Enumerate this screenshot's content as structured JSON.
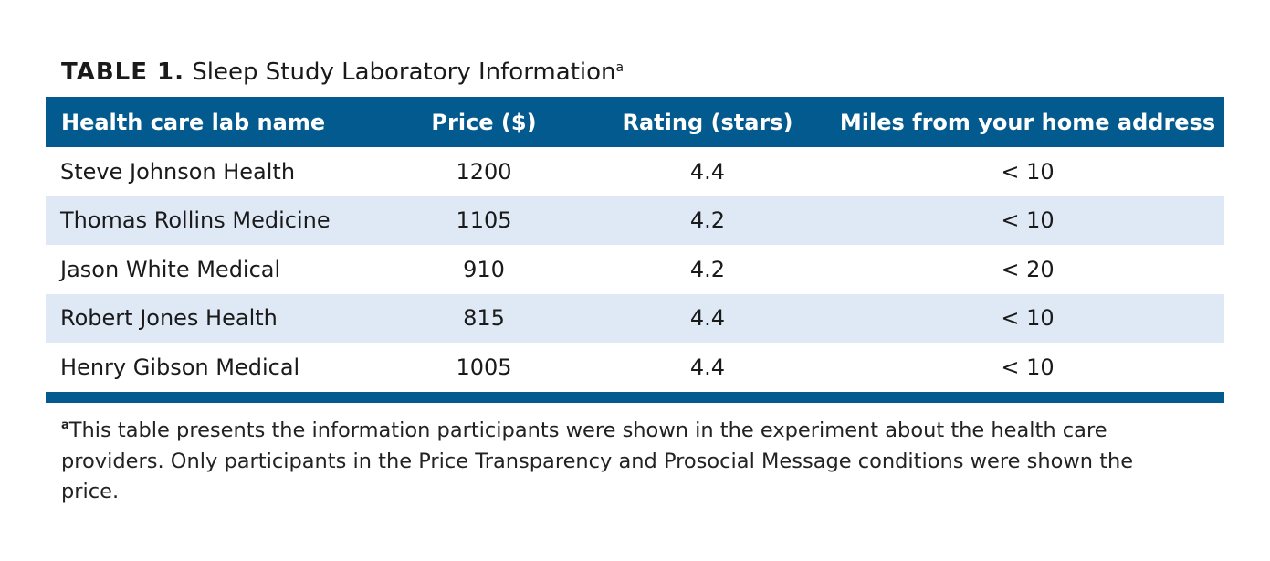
{
  "caption": {
    "label": "TABLE 1.",
    "title": "Sleep Study Laboratory Information",
    "note_marker": "a"
  },
  "table": {
    "headers": [
      "Health care lab name",
      "Price ($)",
      "Rating (stars)",
      "Miles from your home address"
    ],
    "rows": [
      [
        "Steve Johnson Health",
        "1200",
        "4.4",
        "< 10"
      ],
      [
        "Thomas Rollins Medicine",
        "1105",
        "4.2",
        "< 10"
      ],
      [
        "Jason White Medical",
        "910",
        "4.2",
        "< 20"
      ],
      [
        "Robert Jones Health",
        "815",
        "4.4",
        "< 10"
      ],
      [
        "Henry Gibson Medical",
        "1005",
        "4.4",
        "< 10"
      ]
    ]
  },
  "footnote": {
    "marker": "a",
    "text": "This table presents the information participants were shown in the experiment about the health care providers. Only participants in the Price Transparency and Prosocial Message conditions were shown the price."
  },
  "colors": {
    "header_bg": "#035a8e",
    "alt_row_bg": "#dfe9f5"
  }
}
